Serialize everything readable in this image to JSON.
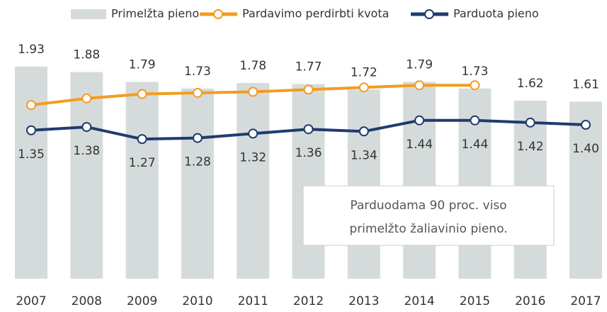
{
  "chart_data": {
    "type": "bar-line",
    "categories": [
      "2007",
      "2008",
      "2009",
      "2010",
      "2011",
      "2012",
      "2013",
      "2014",
      "2015",
      "2016",
      "2017"
    ],
    "ylim": [
      0,
      2.2
    ],
    "series": [
      {
        "name": "Primelžta pieno",
        "type": "bar",
        "color": "#d5dbdb",
        "values": [
          1.93,
          1.88,
          1.79,
          1.73,
          1.78,
          1.77,
          1.72,
          1.79,
          1.73,
          1.62,
          1.61
        ]
      },
      {
        "name": "Pardavimo perdirbti kvota",
        "type": "line",
        "color": "#f39c1f",
        "values": [
          1.58,
          1.64,
          1.68,
          1.69,
          1.7,
          1.72,
          1.74,
          1.76,
          1.76,
          null,
          null
        ]
      },
      {
        "name": "Parduota pieno",
        "type": "line",
        "color": "#1f3b70",
        "values": [
          1.35,
          1.38,
          1.27,
          1.28,
          1.32,
          1.36,
          1.34,
          1.44,
          1.44,
          1.42,
          1.4
        ],
        "value_labels": [
          "1.35",
          "1.38",
          "1.27",
          "1.28",
          "1.32",
          "1.36",
          "1.34",
          "1.44",
          "1.44",
          "1.42",
          "1.40"
        ]
      }
    ],
    "annotation": [
      "Parduodama 90 proc. viso",
      "primelžto  žaliavinio pieno."
    ]
  }
}
